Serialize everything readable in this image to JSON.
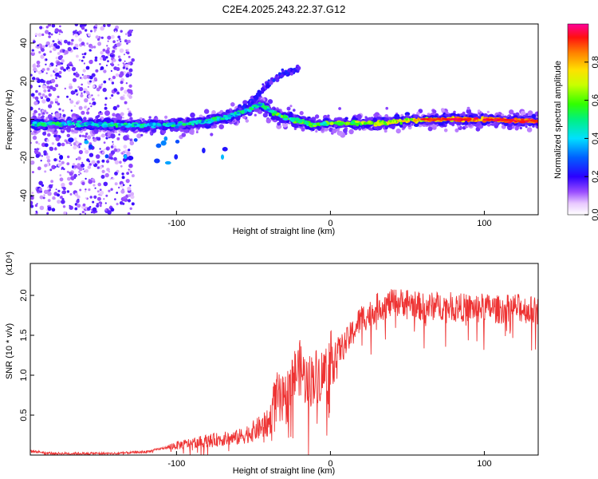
{
  "title": "C2E4.2025.243.22.37.G12",
  "colorbar": {
    "label": "Normalized spectral amplitude",
    "ticks": [
      "0.0",
      "0.2",
      "0.4",
      "0.6",
      "0.8"
    ],
    "range": [
      0,
      1
    ]
  },
  "chart_data": [
    {
      "type": "heatmap",
      "xlabel": "Height of straight line (km)",
      "ylabel": "Frequency (Hz)",
      "xlim": [
        -195,
        135
      ],
      "ylim": [
        -50,
        50
      ],
      "xticks": [
        "-100",
        "0",
        "100"
      ],
      "yticks": [
        "-40",
        "-20",
        "0",
        "20",
        "40"
      ],
      "grid": false,
      "ridge": {
        "x": [
          -195,
          -130,
          -100,
          -80,
          -60,
          -45,
          -40,
          -30,
          -20,
          -10,
          0,
          30,
          60,
          100,
          135
        ],
        "frequency": [
          -2,
          -3,
          -3,
          -1,
          3,
          8,
          5,
          1,
          -1,
          -3,
          -2,
          -2,
          0,
          0,
          -1
        ]
      },
      "branch": {
        "x": [
          -60,
          -50,
          -45,
          -40,
          -35,
          -30,
          -25,
          -20
        ],
        "frequency": [
          5,
          10,
          15,
          19,
          22,
          24,
          25,
          27
        ]
      },
      "noise_region_x": [
        -195,
        -128
      ],
      "strong_band_x": [
        60,
        135
      ]
    },
    {
      "type": "line",
      "xlabel": "Height of straight line (km)",
      "ylabel": "SNR (10 * v/v)",
      "y_scale_label": "(x10⁴)",
      "xlim": [
        -195,
        135
      ],
      "ylim": [
        0,
        2.4
      ],
      "xticks": [
        "-100",
        "0",
        "100"
      ],
      "yticks": [
        "0.5",
        "1.0",
        "1.5",
        "2.0"
      ],
      "grid": false,
      "color": "#ee3333",
      "series": [
        {
          "x": [
            -195,
            -180,
            -160,
            -140,
            -120,
            -100,
            -80,
            -60,
            -50,
            -40,
            -35,
            -30,
            -25,
            -20,
            -15,
            -10,
            -5,
            0,
            5,
            10,
            15,
            20,
            25,
            30,
            40,
            50,
            60,
            70,
            80,
            90,
            100,
            110,
            120,
            135
          ],
          "values": [
            0.05,
            0.02,
            0.02,
            0.02,
            0.04,
            0.12,
            0.18,
            0.22,
            0.3,
            0.4,
            0.7,
            0.62,
            0.95,
            1.1,
            0.9,
            1.0,
            1.0,
            1.2,
            1.3,
            1.4,
            1.55,
            1.72,
            1.75,
            1.85,
            1.9,
            1.92,
            1.85,
            1.87,
            1.86,
            1.84,
            1.85,
            1.82,
            1.85,
            1.8
          ]
        }
      ]
    }
  ]
}
